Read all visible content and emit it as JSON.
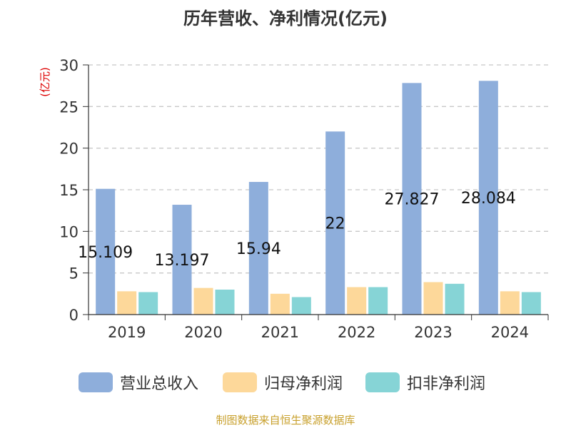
{
  "chart_data": {
    "type": "bar",
    "title": "历年营收、净利情况(亿元)",
    "ylabel": "(亿元)",
    "xlabel": "",
    "ylim": [
      0,
      30
    ],
    "yticks": [
      0,
      5,
      10,
      15,
      20,
      25,
      30
    ],
    "grid": true,
    "legend_position": "bottom",
    "categories": [
      "2019",
      "2020",
      "2021",
      "2022",
      "2023",
      "2024"
    ],
    "series": [
      {
        "name": "营业总收入",
        "color": "#8eaedb",
        "values": [
          15.109,
          13.197,
          15.94,
          22,
          27.827,
          28.084
        ],
        "data_labels": [
          "15.109",
          "13.197",
          "15.94",
          "22",
          "27.827",
          "28.084"
        ]
      },
      {
        "name": "归母净利润",
        "color": "#fdd89a",
        "values": [
          2.8,
          3.2,
          2.5,
          3.3,
          3.9,
          2.8
        ]
      },
      {
        "name": "扣非净利润",
        "color": "#86d4d6",
        "values": [
          2.7,
          3.0,
          2.1,
          3.3,
          3.7,
          2.7
        ]
      }
    ]
  },
  "source": "制图数据来自恒生聚源数据库"
}
